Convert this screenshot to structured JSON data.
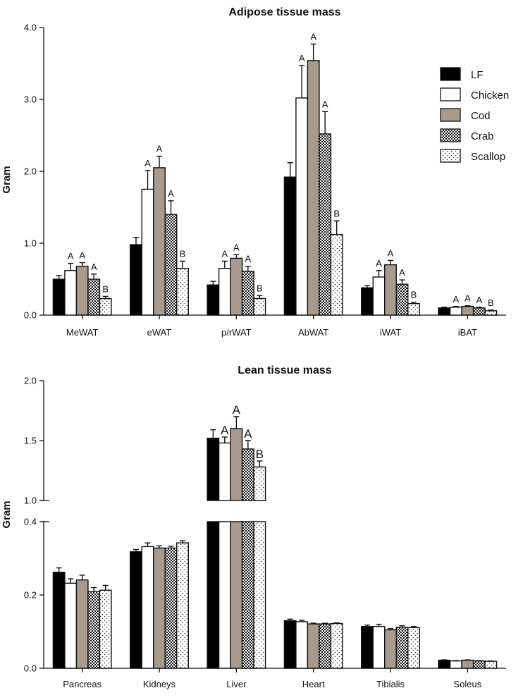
{
  "colors": {
    "LF": "#000000",
    "Chicken": "#ffffff",
    "Cod": "#a89a8c",
    "Crab": "checker-pattern",
    "Scallop": "dotted-pattern"
  },
  "chart_data": [
    {
      "type": "bar",
      "title": "Adipose tissue mass",
      "ylabel": "Gram",
      "xlabel": "",
      "ylim": [
        0,
        4.0
      ],
      "yticks": [
        "0.0",
        "1.0",
        "2.0",
        "3.0",
        "4.0"
      ],
      "legend_position": "top-right",
      "series_names": [
        "LF",
        "Chicken",
        "Cod",
        "Crab",
        "Scallop"
      ],
      "categories": [
        "MeWAT",
        "eWAT",
        "p/rWAT",
        "AbWAT",
        "iWAT",
        "iBAT"
      ],
      "series": [
        {
          "name": "LF",
          "values": [
            0.5,
            0.98,
            0.42,
            1.92,
            0.38,
            0.1
          ],
          "errors": [
            0.05,
            0.1,
            0.05,
            0.2,
            0.03,
            0.01
          ]
        },
        {
          "name": "Chicken",
          "values": [
            0.62,
            1.75,
            0.65,
            3.02,
            0.53,
            0.11
          ],
          "errors": [
            0.1,
            0.26,
            0.1,
            0.45,
            0.09,
            0.01
          ]
        },
        {
          "name": "Cod",
          "values": [
            0.68,
            2.05,
            0.79,
            3.54,
            0.7,
            0.12
          ],
          "errors": [
            0.05,
            0.16,
            0.05,
            0.23,
            0.06,
            0.01
          ]
        },
        {
          "name": "Crab",
          "values": [
            0.5,
            1.4,
            0.61,
            2.52,
            0.43,
            0.1
          ],
          "errors": [
            0.07,
            0.19,
            0.07,
            0.31,
            0.06,
            0.01
          ]
        },
        {
          "name": "Scallop",
          "values": [
            0.23,
            0.65,
            0.23,
            1.12,
            0.16,
            0.06
          ],
          "errors": [
            0.03,
            0.1,
            0.04,
            0.19,
            0.02,
            0.01
          ]
        }
      ],
      "significance": [
        [
          "",
          "A",
          "A",
          "A",
          "B"
        ],
        [
          "",
          "A",
          "A",
          "A",
          "B"
        ],
        [
          "",
          "A",
          "A",
          "A",
          "B"
        ],
        [
          "",
          "A",
          "A",
          "A",
          "B"
        ],
        [
          "",
          "A",
          "A",
          "A",
          "B"
        ],
        [
          "",
          "A",
          "A",
          "A",
          "B"
        ]
      ]
    },
    {
      "type": "bar",
      "title": "Lean tissue mass",
      "ylabel": "Gram",
      "xlabel": "",
      "axis_break": true,
      "lower_ylim": [
        0,
        0.4
      ],
      "upper_ylim": [
        1.0,
        2.0
      ],
      "lower_yticks": [
        "0.0",
        "0.2",
        "0.4"
      ],
      "upper_yticks": [
        "1.0",
        "1.5",
        "2.0"
      ],
      "categories": [
        "Pancreas",
        "Kidneys",
        "Liver",
        "Heart",
        "Tibialis",
        "Soleus"
      ],
      "series": [
        {
          "name": "LF",
          "values": [
            0.262,
            0.318,
            1.52,
            0.13,
            0.114,
            0.022
          ],
          "errors": [
            0.012,
            0.006,
            0.07,
            0.004,
            0.004,
            0.001
          ]
        },
        {
          "name": "Chicken",
          "values": [
            0.232,
            0.332,
            1.48,
            0.127,
            0.114,
            0.02
          ],
          "errors": [
            0.012,
            0.01,
            0.05,
            0.004,
            0.006,
            0.001
          ]
        },
        {
          "name": "Cod",
          "values": [
            0.241,
            0.328,
            1.6,
            0.121,
            0.105,
            0.022
          ],
          "errors": [
            0.013,
            0.006,
            0.1,
            0.002,
            0.003,
            0.001
          ]
        },
        {
          "name": "Crab",
          "values": [
            0.209,
            0.328,
            1.43,
            0.121,
            0.112,
            0.02
          ],
          "errors": [
            0.011,
            0.005,
            0.07,
            0.002,
            0.004,
            0.001
          ]
        },
        {
          "name": "Scallop",
          "values": [
            0.213,
            0.342,
            1.28,
            0.122,
            0.111,
            0.019
          ],
          "errors": [
            0.013,
            0.006,
            0.05,
            0.002,
            0.003,
            0.001
          ]
        }
      ],
      "significance": [
        [
          "",
          "",
          "",
          "",
          ""
        ],
        [
          "",
          "",
          "",
          "",
          ""
        ],
        [
          "",
          "A",
          "A",
          "A",
          "B"
        ],
        [
          "",
          "",
          "",
          "",
          ""
        ],
        [
          "",
          "",
          "",
          "",
          ""
        ],
        [
          "",
          "",
          "",
          "",
          ""
        ]
      ]
    }
  ]
}
